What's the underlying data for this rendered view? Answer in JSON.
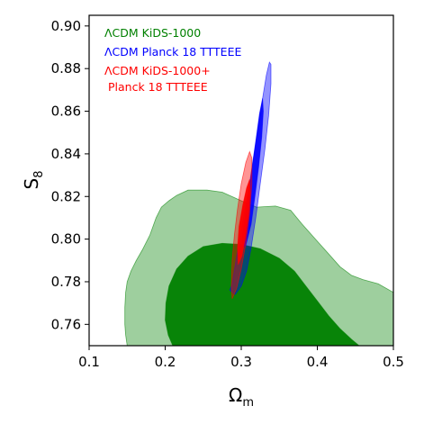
{
  "chart_data": {
    "type": "contour",
    "xlabel": "Ω",
    "xlabel_sub": "m",
    "ylabel": "S",
    "ylabel_sub": "8",
    "xlim": [
      0.1,
      0.5
    ],
    "ylim": [
      0.75,
      0.905
    ],
    "xticks": [
      "0.1",
      "0.2",
      "0.3",
      "0.4",
      "0.5"
    ],
    "yticks": [
      "0.76",
      "0.78",
      "0.80",
      "0.82",
      "0.84",
      "0.86",
      "0.88",
      "0.90"
    ],
    "legend": [
      {
        "text": "ΛCDM KiDS-1000",
        "color": "#008000"
      },
      {
        "text": "ΛCDM Planck 18 TTTEEE",
        "color": "#0000ff"
      },
      {
        "text": "ΛCDM KiDS-1000+",
        "color": "#ff0000"
      },
      {
        "text": " Planck 18 TTTEEE",
        "color": "#ff0000"
      }
    ],
    "series": [
      {
        "name": "ΛCDM KiDS-1000",
        "color": "#008000",
        "levels": [
          {
            "level": "95%",
            "opacity": 0.38,
            "points": [
              [
                0.15,
                0.75
              ],
              [
                0.148,
                0.755
              ],
              [
                0.147,
                0.76
              ],
              [
                0.147,
                0.768
              ],
              [
                0.148,
                0.775
              ],
              [
                0.15,
                0.78
              ],
              [
                0.155,
                0.785
              ],
              [
                0.162,
                0.79
              ],
              [
                0.17,
                0.795
              ],
              [
                0.18,
                0.802
              ],
              [
                0.188,
                0.81
              ],
              [
                0.195,
                0.815
              ],
              [
                0.205,
                0.818
              ],
              [
                0.215,
                0.8205
              ],
              [
                0.23,
                0.823
              ],
              [
                0.255,
                0.823
              ],
              [
                0.275,
                0.822
              ],
              [
                0.3,
                0.818
              ],
              [
                0.32,
                0.815
              ],
              [
                0.345,
                0.8155
              ],
              [
                0.365,
                0.8135
              ],
              [
                0.38,
                0.807
              ],
              [
                0.4,
                0.799
              ],
              [
                0.415,
                0.793
              ],
              [
                0.43,
                0.787
              ],
              [
                0.445,
                0.783
              ],
              [
                0.46,
                0.781
              ],
              [
                0.48,
                0.779
              ],
              [
                0.5,
                0.775
              ],
              [
                0.5,
                0.75
              ]
            ]
          },
          {
            "level": "68%",
            "opacity": 0.95,
            "points": [
              [
                0.21,
                0.75
              ],
              [
                0.204,
                0.755
              ],
              [
                0.2,
                0.762
              ],
              [
                0.201,
                0.77
              ],
              [
                0.205,
                0.778
              ],
              [
                0.215,
                0.786
              ],
              [
                0.23,
                0.792
              ],
              [
                0.25,
                0.7965
              ],
              [
                0.275,
                0.798
              ],
              [
                0.3,
                0.7975
              ],
              [
                0.325,
                0.7955
              ],
              [
                0.35,
                0.791
              ],
              [
                0.37,
                0.785
              ],
              [
                0.385,
                0.778
              ],
              [
                0.4,
                0.771
              ],
              [
                0.415,
                0.764
              ],
              [
                0.43,
                0.758
              ],
              [
                0.445,
                0.753
              ],
              [
                0.455,
                0.75
              ]
            ]
          }
        ]
      },
      {
        "name": "ΛCDM Planck 18 TTTEEE",
        "color": "#0000ff",
        "levels": [
          {
            "level": "95%",
            "opacity": 0.42,
            "points": [
              [
                0.285,
                0.776
              ],
              [
                0.288,
                0.779
              ],
              [
                0.293,
                0.79
              ],
              [
                0.298,
                0.8
              ],
              [
                0.304,
                0.812
              ],
              [
                0.31,
                0.824
              ],
              [
                0.316,
                0.838
              ],
              [
                0.322,
                0.852
              ],
              [
                0.328,
                0.866
              ],
              [
                0.333,
                0.877
              ],
              [
                0.337,
                0.883
              ],
              [
                0.339,
                0.882
              ],
              [
                0.339,
                0.873
              ],
              [
                0.336,
                0.858
              ],
              [
                0.331,
                0.842
              ],
              [
                0.325,
                0.826
              ],
              [
                0.319,
                0.81
              ],
              [
                0.313,
                0.796
              ],
              [
                0.307,
                0.785
              ],
              [
                0.3,
                0.778
              ],
              [
                0.292,
                0.774
              ]
            ]
          },
          {
            "level": "68%",
            "opacity": 0.9,
            "points": [
              [
                0.301,
                0.8
              ],
              [
                0.304,
                0.808
              ],
              [
                0.309,
                0.82
              ],
              [
                0.314,
                0.833
              ],
              [
                0.319,
                0.846
              ],
              [
                0.324,
                0.859
              ],
              [
                0.328,
                0.866
              ],
              [
                0.329,
                0.86
              ],
              [
                0.327,
                0.848
              ],
              [
                0.323,
                0.834
              ],
              [
                0.318,
                0.82
              ],
              [
                0.313,
                0.807
              ],
              [
                0.306,
                0.797
              ],
              [
                0.302,
                0.796
              ]
            ]
          }
        ]
      },
      {
        "name": "ΛCDM KiDS-1000+ Planck 18 TTTEEE",
        "color": "#ff0000",
        "levels": [
          {
            "level": "95%",
            "opacity": 0.42,
            "points": [
              [
                0.288,
                0.772
              ],
              [
                0.287,
                0.778
              ],
              [
                0.288,
                0.79
              ],
              [
                0.291,
                0.802
              ],
              [
                0.295,
                0.814
              ],
              [
                0.3,
                0.826
              ],
              [
                0.306,
                0.836
              ],
              [
                0.311,
                0.841
              ],
              [
                0.314,
                0.838
              ],
              [
                0.314,
                0.826
              ],
              [
                0.311,
                0.812
              ],
              [
                0.306,
                0.798
              ],
              [
                0.3,
                0.786
              ],
              [
                0.294,
                0.777
              ]
            ]
          },
          {
            "level": "68%",
            "opacity": 0.95,
            "points": [
              [
                0.296,
                0.788
              ],
              [
                0.295,
                0.796
              ],
              [
                0.297,
                0.806
              ],
              [
                0.302,
                0.816
              ],
              [
                0.307,
                0.824
              ],
              [
                0.311,
                0.828
              ],
              [
                0.312,
                0.822
              ],
              [
                0.31,
                0.812
              ],
              [
                0.306,
                0.802
              ],
              [
                0.301,
                0.792
              ]
            ]
          }
        ]
      }
    ]
  }
}
